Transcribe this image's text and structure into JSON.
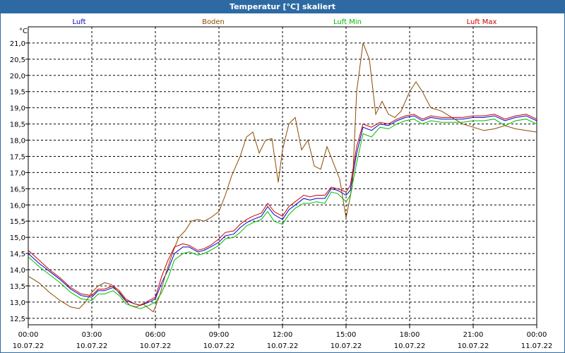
{
  "window": {
    "title": "Temperatur [°C] skaliert"
  },
  "chart_data": {
    "type": "line",
    "title": "Temperatur [°C] skaliert",
    "ylabel": "°C",
    "xlabel": "",
    "ylim": [
      12.3,
      21.5
    ],
    "xlim": [
      0,
      24
    ],
    "grid": true,
    "yticks": [
      "12,5",
      "13,0",
      "13,5",
      "14,0",
      "14,5",
      "15,0",
      "15,5",
      "16,0",
      "16,5",
      "17,0",
      "17,5",
      "18,0",
      "18,5",
      "19,0",
      "19,5",
      "20,0",
      "20,5",
      "21,0"
    ],
    "ytick_values": [
      12.5,
      13.0,
      13.5,
      14.0,
      14.5,
      15.0,
      15.5,
      16.0,
      16.5,
      17.0,
      17.5,
      18.0,
      18.5,
      19.0,
      19.5,
      20.0,
      20.5,
      21.0
    ],
    "xticks": [
      {
        "hour": 0,
        "time": "00:00",
        "date": "10.07.22"
      },
      {
        "hour": 3,
        "time": "03:00",
        "date": "10.07.22"
      },
      {
        "hour": 6,
        "time": "06:00",
        "date": "10.07.22"
      },
      {
        "hour": 9,
        "time": "09:00",
        "date": "10.07.22"
      },
      {
        "hour": 12,
        "time": "12:00",
        "date": "10.07.22"
      },
      {
        "hour": 15,
        "time": "15:00",
        "date": "10.07.22"
      },
      {
        "hour": 18,
        "time": "18:00",
        "date": "10.07.22"
      },
      {
        "hour": 21,
        "time": "21:00",
        "date": "10.07.22"
      },
      {
        "hour": 24,
        "time": "00:00",
        "date": "11.07.22"
      }
    ],
    "series": [
      {
        "name": "Luft",
        "color": "#0000cc",
        "points": [
          [
            0,
            14.5
          ],
          [
            0.5,
            14.2
          ],
          [
            1,
            13.95
          ],
          [
            1.5,
            13.7
          ],
          [
            2,
            13.4
          ],
          [
            2.5,
            13.2
          ],
          [
            3,
            13.15
          ],
          [
            3.3,
            13.35
          ],
          [
            3.6,
            13.35
          ],
          [
            4,
            13.45
          ],
          [
            4.3,
            13.3
          ],
          [
            4.6,
            13.05
          ],
          [
            5,
            12.95
          ],
          [
            5.3,
            12.9
          ],
          [
            5.7,
            13.0
          ],
          [
            6,
            13.1
          ],
          [
            6.3,
            13.6
          ],
          [
            6.6,
            14.0
          ],
          [
            6.9,
            14.5
          ],
          [
            7.3,
            14.7
          ],
          [
            7.6,
            14.7
          ],
          [
            8,
            14.55
          ],
          [
            8.3,
            14.6
          ],
          [
            8.6,
            14.7
          ],
          [
            9,
            14.85
          ],
          [
            9.3,
            15.05
          ],
          [
            9.7,
            15.1
          ],
          [
            10,
            15.3
          ],
          [
            10.3,
            15.45
          ],
          [
            10.6,
            15.55
          ],
          [
            11,
            15.65
          ],
          [
            11.3,
            15.95
          ],
          [
            11.6,
            15.7
          ],
          [
            12,
            15.55
          ],
          [
            12.3,
            15.85
          ],
          [
            12.6,
            16.0
          ],
          [
            13,
            16.2
          ],
          [
            13.3,
            16.15
          ],
          [
            13.6,
            16.2
          ],
          [
            14,
            16.2
          ],
          [
            14.3,
            16.5
          ],
          [
            14.6,
            16.45
          ],
          [
            15,
            16.3
          ],
          [
            15.2,
            16.45
          ],
          [
            15.5,
            17.6
          ],
          [
            15.8,
            18.4
          ],
          [
            16.2,
            18.3
          ],
          [
            16.6,
            18.5
          ],
          [
            17,
            18.45
          ],
          [
            17.4,
            18.6
          ],
          [
            17.8,
            18.7
          ],
          [
            18.2,
            18.75
          ],
          [
            18.6,
            18.6
          ],
          [
            19,
            18.7
          ],
          [
            19.5,
            18.65
          ],
          [
            20,
            18.65
          ],
          [
            20.5,
            18.65
          ],
          [
            21,
            18.7
          ],
          [
            21.5,
            18.7
          ],
          [
            22,
            18.75
          ],
          [
            22.5,
            18.6
          ],
          [
            23,
            18.7
          ],
          [
            23.5,
            18.75
          ],
          [
            24,
            18.6
          ]
        ]
      },
      {
        "name": "Boden",
        "color": "#8b4a00",
        "points": [
          [
            0,
            13.8
          ],
          [
            0.5,
            13.6
          ],
          [
            1,
            13.3
          ],
          [
            1.5,
            13.05
          ],
          [
            2,
            12.85
          ],
          [
            2.4,
            12.8
          ],
          [
            2.7,
            13.0
          ],
          [
            3,
            13.3
          ],
          [
            3.3,
            13.5
          ],
          [
            3.6,
            13.6
          ],
          [
            3.9,
            13.55
          ],
          [
            4.2,
            13.35
          ],
          [
            4.5,
            13.1
          ],
          [
            4.8,
            12.9
          ],
          [
            5.1,
            12.85
          ],
          [
            5.4,
            12.95
          ],
          [
            5.7,
            12.8
          ],
          [
            5.9,
            12.7
          ],
          [
            6.0,
            12.85
          ],
          [
            6.2,
            13.2
          ],
          [
            6.5,
            13.9
          ],
          [
            6.8,
            14.5
          ],
          [
            7.1,
            15.0
          ],
          [
            7.4,
            15.2
          ],
          [
            7.7,
            15.5
          ],
          [
            8,
            15.55
          ],
          [
            8.3,
            15.5
          ],
          [
            8.6,
            15.6
          ],
          [
            9,
            15.8
          ],
          [
            9.3,
            16.3
          ],
          [
            9.6,
            16.9
          ],
          [
            10,
            17.5
          ],
          [
            10.3,
            18.1
          ],
          [
            10.6,
            18.25
          ],
          [
            10.9,
            17.6
          ],
          [
            11.2,
            18.0
          ],
          [
            11.5,
            18.05
          ],
          [
            11.8,
            16.7
          ],
          [
            12,
            17.7
          ],
          [
            12.3,
            18.5
          ],
          [
            12.6,
            18.7
          ],
          [
            12.9,
            17.7
          ],
          [
            13.2,
            18.0
          ],
          [
            13.5,
            17.2
          ],
          [
            13.8,
            17.1
          ],
          [
            14.1,
            17.8
          ],
          [
            14.4,
            17.3
          ],
          [
            14.7,
            16.8
          ],
          [
            15.0,
            15.6
          ],
          [
            15.3,
            16.6
          ],
          [
            15.5,
            19.5
          ],
          [
            15.8,
            21.0
          ],
          [
            16.1,
            20.5
          ],
          [
            16.4,
            18.8
          ],
          [
            16.7,
            19.2
          ],
          [
            17,
            18.8
          ],
          [
            17.3,
            18.7
          ],
          [
            17.6,
            18.9
          ],
          [
            18,
            19.5
          ],
          [
            18.3,
            19.8
          ],
          [
            18.6,
            19.5
          ],
          [
            19,
            19.0
          ],
          [
            19.5,
            18.9
          ],
          [
            20,
            18.7
          ],
          [
            20.5,
            18.5
          ],
          [
            21,
            18.4
          ],
          [
            21.5,
            18.3
          ],
          [
            22,
            18.35
          ],
          [
            22.5,
            18.45
          ],
          [
            23,
            18.35
          ],
          [
            23.5,
            18.3
          ],
          [
            24,
            18.25
          ]
        ]
      },
      {
        "name": "Luft Min",
        "color": "#00bb00",
        "points": [
          [
            0,
            14.4
          ],
          [
            0.5,
            14.1
          ],
          [
            1,
            13.85
          ],
          [
            1.5,
            13.6
          ],
          [
            2,
            13.3
          ],
          [
            2.5,
            13.1
          ],
          [
            3,
            13.05
          ],
          [
            3.3,
            13.25
          ],
          [
            3.6,
            13.25
          ],
          [
            4,
            13.35
          ],
          [
            4.3,
            13.2
          ],
          [
            4.6,
            12.95
          ],
          [
            5,
            12.85
          ],
          [
            5.3,
            12.8
          ],
          [
            5.7,
            12.9
          ],
          [
            6,
            13.0
          ],
          [
            6.3,
            13.3
          ],
          [
            6.6,
            13.75
          ],
          [
            6.9,
            14.3
          ],
          [
            7.3,
            14.5
          ],
          [
            7.6,
            14.55
          ],
          [
            8,
            14.45
          ],
          [
            8.3,
            14.5
          ],
          [
            8.6,
            14.6
          ],
          [
            9,
            14.75
          ],
          [
            9.3,
            14.95
          ],
          [
            9.7,
            15.0
          ],
          [
            10,
            15.15
          ],
          [
            10.3,
            15.35
          ],
          [
            10.6,
            15.45
          ],
          [
            11,
            15.55
          ],
          [
            11.3,
            15.8
          ],
          [
            11.6,
            15.5
          ],
          [
            12,
            15.4
          ],
          [
            12.3,
            15.7
          ],
          [
            12.6,
            15.9
          ],
          [
            13,
            16.05
          ],
          [
            13.3,
            16.05
          ],
          [
            13.6,
            16.1
          ],
          [
            14,
            16.05
          ],
          [
            14.3,
            16.4
          ],
          [
            14.6,
            16.35
          ],
          [
            15,
            16.1
          ],
          [
            15.2,
            16.3
          ],
          [
            15.5,
            17.3
          ],
          [
            15.8,
            18.2
          ],
          [
            16.2,
            18.1
          ],
          [
            16.6,
            18.4
          ],
          [
            17,
            18.35
          ],
          [
            17.4,
            18.5
          ],
          [
            17.8,
            18.6
          ],
          [
            18.2,
            18.65
          ],
          [
            18.6,
            18.5
          ],
          [
            19,
            18.6
          ],
          [
            19.5,
            18.55
          ],
          [
            20,
            18.55
          ],
          [
            20.5,
            18.55
          ],
          [
            21,
            18.6
          ],
          [
            21.5,
            18.6
          ],
          [
            22,
            18.65
          ],
          [
            22.5,
            18.45
          ],
          [
            23,
            18.6
          ],
          [
            23.5,
            18.65
          ],
          [
            24,
            18.5
          ]
        ]
      },
      {
        "name": "Luft Max",
        "color": "#cc0000",
        "points": [
          [
            0,
            14.6
          ],
          [
            0.5,
            14.3
          ],
          [
            1,
            14.0
          ],
          [
            1.5,
            13.75
          ],
          [
            2,
            13.45
          ],
          [
            2.5,
            13.25
          ],
          [
            3,
            13.2
          ],
          [
            3.3,
            13.4
          ],
          [
            3.6,
            13.4
          ],
          [
            4,
            13.5
          ],
          [
            4.3,
            13.35
          ],
          [
            4.6,
            13.1
          ],
          [
            5,
            12.95
          ],
          [
            5.3,
            12.9
          ],
          [
            5.7,
            13.05
          ],
          [
            6,
            13.15
          ],
          [
            6.3,
            13.8
          ],
          [
            6.6,
            14.3
          ],
          [
            6.9,
            14.7
          ],
          [
            7.3,
            14.8
          ],
          [
            7.6,
            14.75
          ],
          [
            8,
            14.6
          ],
          [
            8.3,
            14.65
          ],
          [
            8.6,
            14.75
          ],
          [
            9,
            14.95
          ],
          [
            9.3,
            15.15
          ],
          [
            9.7,
            15.2
          ],
          [
            10,
            15.4
          ],
          [
            10.3,
            15.55
          ],
          [
            10.6,
            15.65
          ],
          [
            11,
            15.75
          ],
          [
            11.3,
            16.05
          ],
          [
            11.6,
            15.8
          ],
          [
            12,
            15.65
          ],
          [
            12.3,
            15.95
          ],
          [
            12.6,
            16.1
          ],
          [
            13,
            16.3
          ],
          [
            13.3,
            16.25
          ],
          [
            13.6,
            16.3
          ],
          [
            14,
            16.3
          ],
          [
            14.3,
            16.55
          ],
          [
            14.6,
            16.5
          ],
          [
            15,
            16.4
          ],
          [
            15.2,
            16.6
          ],
          [
            15.5,
            17.8
          ],
          [
            15.8,
            18.5
          ],
          [
            16.2,
            18.4
          ],
          [
            16.6,
            18.55
          ],
          [
            17,
            18.5
          ],
          [
            17.4,
            18.65
          ],
          [
            17.8,
            18.75
          ],
          [
            18.2,
            18.8
          ],
          [
            18.6,
            18.65
          ],
          [
            19,
            18.75
          ],
          [
            19.5,
            18.7
          ],
          [
            20,
            18.7
          ],
          [
            20.5,
            18.7
          ],
          [
            21,
            18.75
          ],
          [
            21.5,
            18.75
          ],
          [
            22,
            18.8
          ],
          [
            22.5,
            18.65
          ],
          [
            23,
            18.75
          ],
          [
            23.5,
            18.8
          ],
          [
            24,
            18.65
          ]
        ]
      }
    ]
  }
}
